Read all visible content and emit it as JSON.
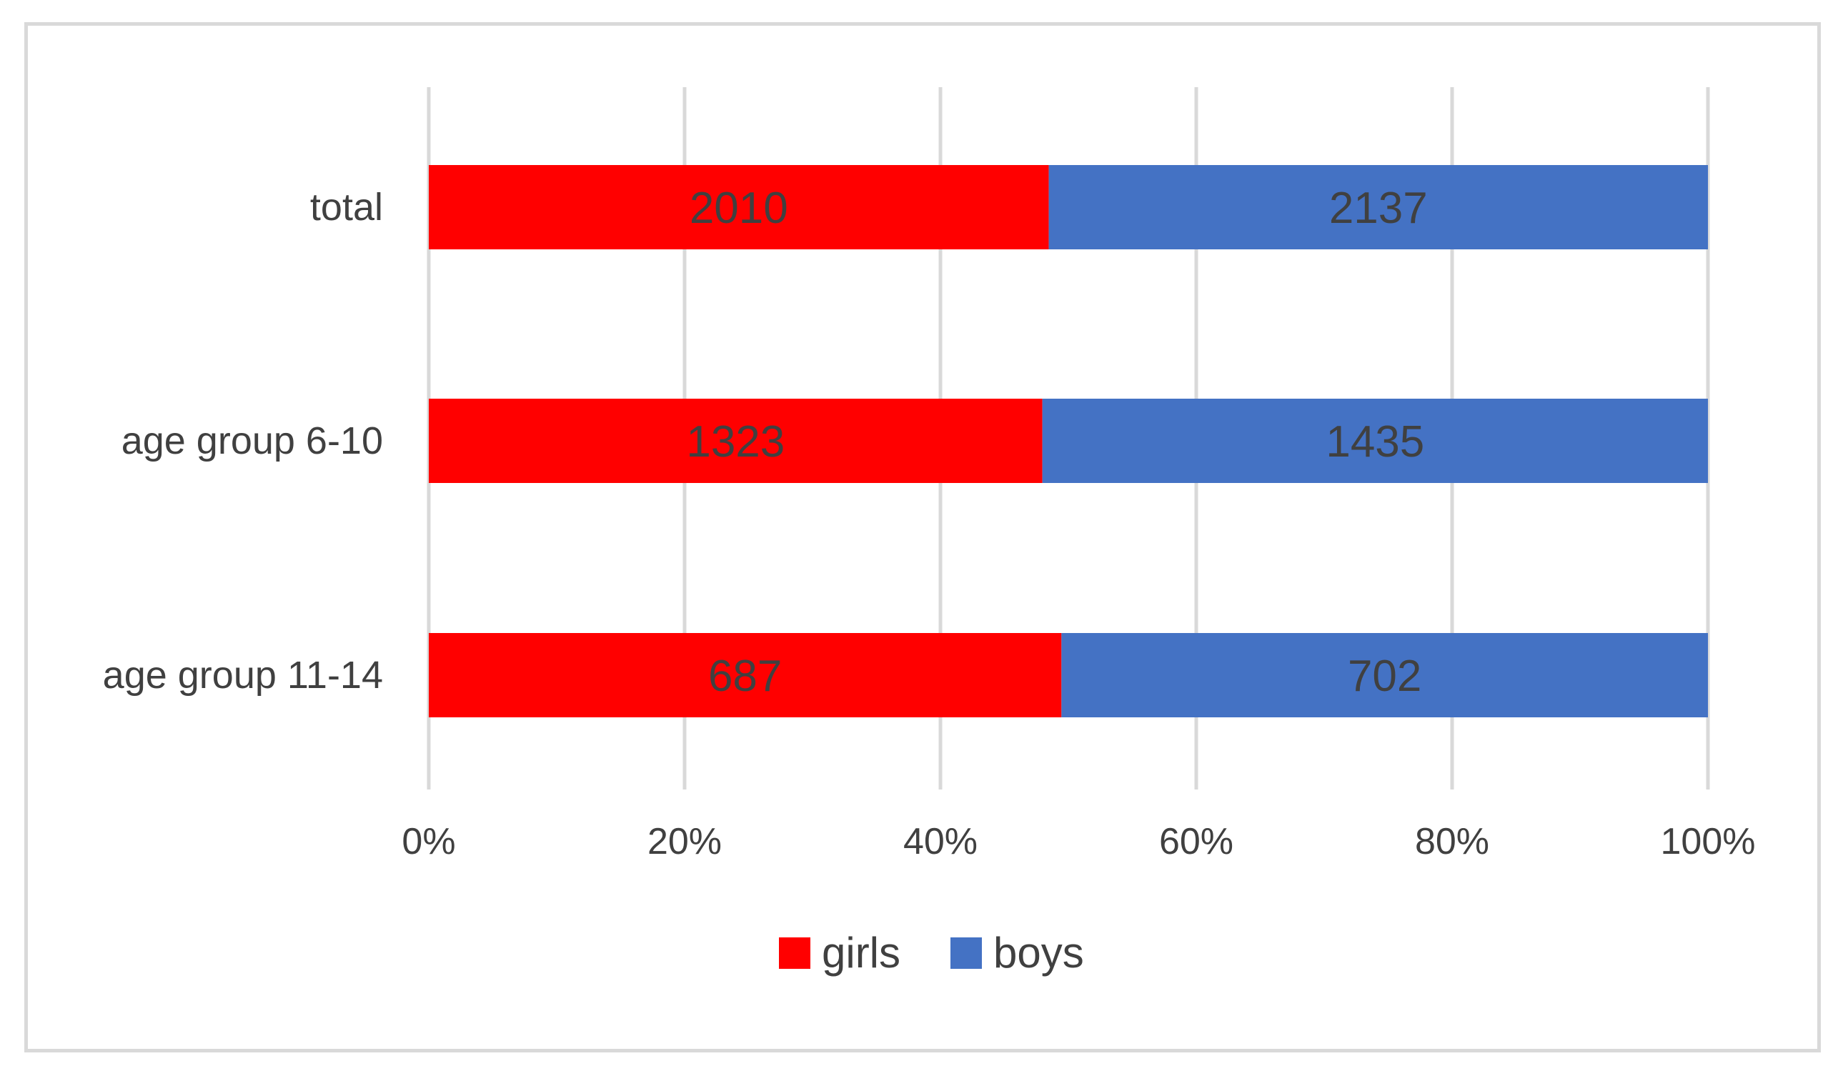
{
  "chart_data": {
    "type": "bar",
    "orientation": "horizontal",
    "stacking": "percent",
    "categories": [
      "total",
      "age group 6-10",
      "age group 11-14"
    ],
    "series": [
      {
        "name": "girls",
        "values": [
          2010,
          1323,
          687
        ],
        "color": "#ff0000"
      },
      {
        "name": "boys",
        "values": [
          2137,
          1435,
          702
        ],
        "color": "#4472c4"
      }
    ],
    "xlim": [
      0,
      100
    ],
    "x_ticks": [
      "0%",
      "20%",
      "40%",
      "60%",
      "80%",
      "100%"
    ],
    "title": "",
    "xlabel": "",
    "ylabel": "",
    "grid": "vertical",
    "legend": "bottom"
  }
}
